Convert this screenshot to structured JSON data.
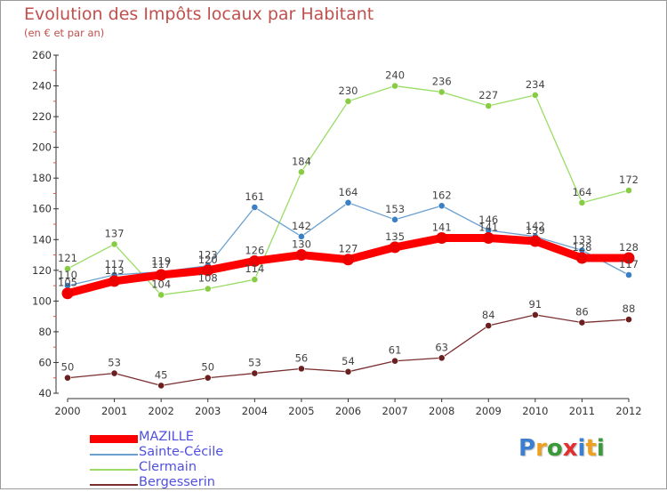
{
  "header": {
    "title": "Evolution des Impôts locaux par Habitant",
    "subtitle": "(en € et par an)"
  },
  "logo": {
    "text": "Proxiti",
    "letters": [
      {
        "ch": "P",
        "color": "#3a7fd0"
      },
      {
        "ch": "r",
        "color": "#f0a020"
      },
      {
        "ch": "o",
        "color": "#3a9a3a"
      },
      {
        "ch": "x",
        "color": "#e03030"
      },
      {
        "ch": "i",
        "color": "#3a7fd0"
      },
      {
        "ch": "t",
        "color": "#f0a020"
      },
      {
        "ch": "i",
        "color": "#3a9a3a"
      }
    ]
  },
  "chart_data": {
    "type": "line",
    "title": "Evolution des Impôts locaux par Habitant",
    "subtitle": "(en € et par an)",
    "x": [
      2000,
      2001,
      2002,
      2003,
      2004,
      2005,
      2006,
      2007,
      2008,
      2009,
      2010,
      2011,
      2012
    ],
    "ylim": [
      40,
      260
    ],
    "yticks": [
      40,
      60,
      80,
      100,
      120,
      140,
      160,
      180,
      200,
      220,
      240,
      260
    ],
    "grid": false,
    "legend_position": "bottom-left",
    "series": [
      {
        "name": "MAZILLE",
        "color": "#ff0000",
        "point_color": "#ee0000",
        "values": [
          105,
          113,
          117,
          120,
          126,
          130,
          127,
          135,
          141,
          141,
          139,
          128,
          128
        ]
      },
      {
        "name": "Sainte-Cécile",
        "color": "#6a9fcf",
        "point_color": "#3b7fc4",
        "values": [
          110,
          117,
          119,
          123,
          161,
          142,
          164,
          153,
          162,
          146,
          142,
          133,
          117
        ]
      },
      {
        "name": "Clermain",
        "color": "#99dd66",
        "point_color": "#88cc44",
        "values": [
          121,
          137,
          104,
          108,
          114,
          184,
          230,
          240,
          236,
          227,
          234,
          164,
          172
        ]
      },
      {
        "name": "Bergesserin",
        "color": "#7a2e2e",
        "point_color": "#6b1f1f",
        "values": [
          50,
          53,
          45,
          50,
          53,
          56,
          54,
          61,
          63,
          84,
          91,
          86,
          88
        ]
      }
    ]
  }
}
